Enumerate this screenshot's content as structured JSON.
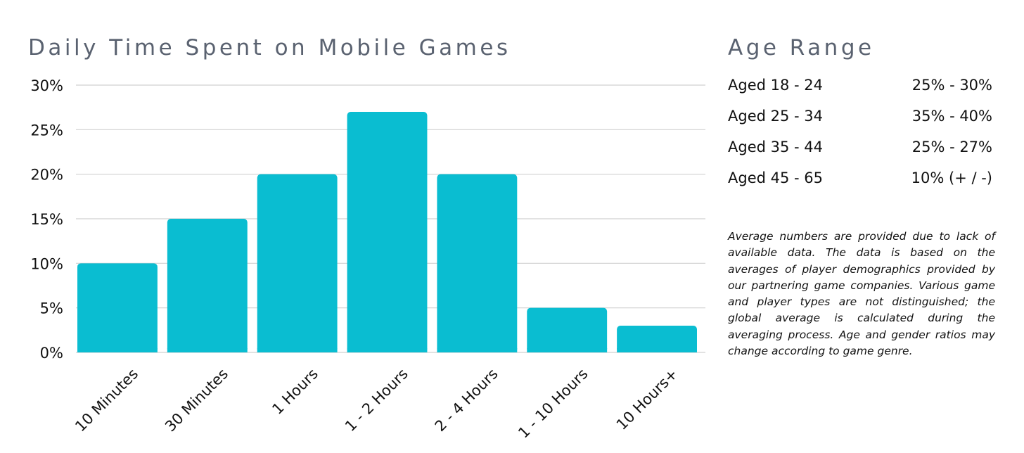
{
  "chart_data": {
    "type": "bar",
    "title": "Daily Time Spent on Mobile Games",
    "categories": [
      "10 Minutes",
      "30 Minutes",
      "1 Hours",
      "1 - 2 Hours",
      "2 - 4 Hours",
      "1 - 10 Hours",
      "10 Hours+"
    ],
    "values": [
      10,
      15,
      20,
      27,
      20,
      5,
      3
    ],
    "ylim": [
      0,
      30
    ],
    "yticks": [
      "0%",
      "5%",
      "10%",
      "15%",
      "20%",
      "25%",
      "30%"
    ],
    "ytick_values": [
      0,
      5,
      10,
      15,
      20,
      25,
      30
    ],
    "xlabel": "",
    "ylabel": "",
    "grid": true,
    "bar_color": "#0abdd1",
    "grid_color": "#d0d0d0"
  },
  "age_range": {
    "title": "Age Range",
    "rows": [
      {
        "label": "Aged 18 - 24",
        "value": "25% - 30%"
      },
      {
        "label": "Aged 25 - 34",
        "value": "35% - 40%"
      },
      {
        "label": "Aged 35 - 44",
        "value": "25% - 27%"
      },
      {
        "label": "Aged 45 - 65",
        "value": "10% (+ / -)"
      }
    ]
  },
  "note": "Average numbers are provided due to lack of available data. The data is based on the averages of player demographics provided by our partnering game companies. Various game and player types are not distinguished; the global average is calculated during the averaging process. Age and gender ratios may change according to game genre."
}
